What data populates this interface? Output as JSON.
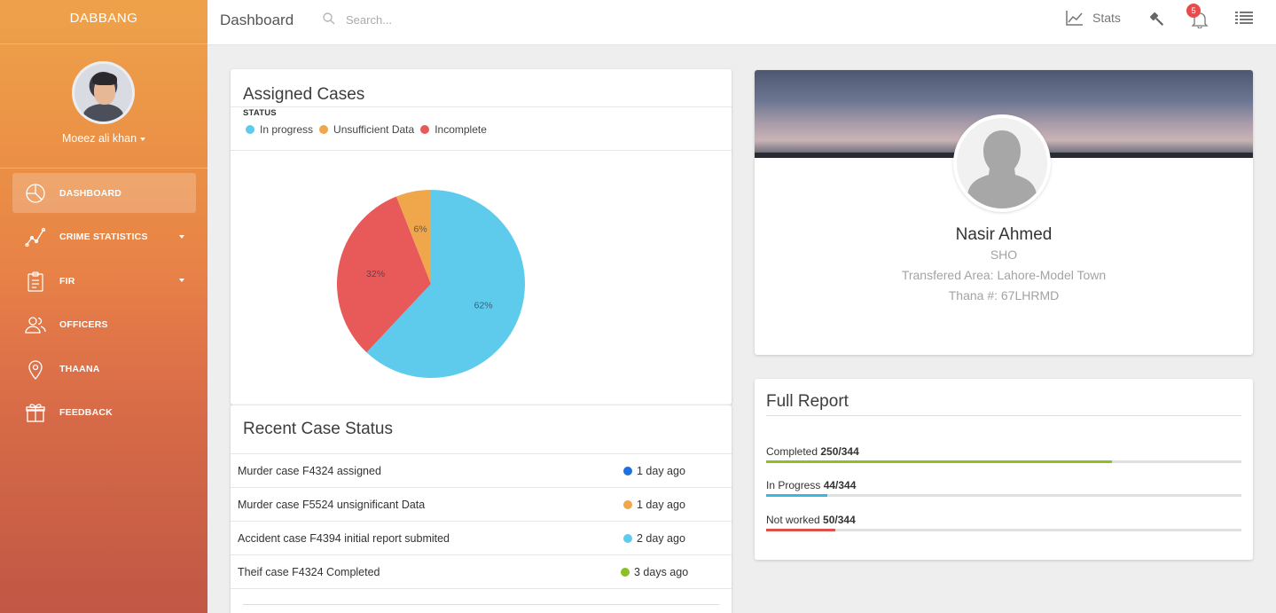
{
  "app": {
    "brand": "DABBANG",
    "user_name": "Moeez ali khan"
  },
  "sidebar": {
    "items": [
      {
        "label": "DASHBOARD",
        "icon": "dashboard-pie-icon",
        "active": true
      },
      {
        "label": "CRIME STATISTICS",
        "icon": "chart-line-icon",
        "has_submenu": true
      },
      {
        "label": "FIR",
        "icon": "clipboard-icon",
        "has_submenu": true
      },
      {
        "label": "OFFICERS",
        "icon": "users-icon"
      },
      {
        "label": "THAANA",
        "icon": "map-pin-icon"
      },
      {
        "label": "FEEDBACK",
        "icon": "gift-icon"
      }
    ]
  },
  "topbar": {
    "title": "Dashboard",
    "search_placeholder": "Search...",
    "stats_label": "Stats",
    "notification_count": "5"
  },
  "assigned_cases": {
    "title": "Assigned Cases",
    "status_label": "STATUS",
    "legend": [
      {
        "label": "In progress",
        "color": "#5ecbed"
      },
      {
        "label": "Unsufficient Data",
        "color": "#f0a64a"
      },
      {
        "label": "Incomplete",
        "color": "#e85a5a"
      }
    ]
  },
  "chart_data": {
    "type": "pie",
    "categories": [
      "In progress",
      "Unsufficient Data",
      "Incomplete"
    ],
    "values": [
      62,
      6,
      32
    ],
    "labels": [
      "62%",
      "6%",
      "32%"
    ],
    "colors": [
      "#5ecbed",
      "#f0a64a",
      "#e85a5a"
    ]
  },
  "recent_status": {
    "title": "Recent Case Status",
    "rows": [
      {
        "text": "Murder case F4324 assigned",
        "time": "1 day ago",
        "color": "#1e6fe0"
      },
      {
        "text": "Murder case F5524 unsignificant Data",
        "time": "1 day ago",
        "color": "#f0a64a"
      },
      {
        "text": "Accident case F4394 initial report submited",
        "time": "2 day ago",
        "color": "#5ecbed"
      },
      {
        "text": "Theif case F4324 Completed",
        "time": "3 days ago",
        "color": "#8fbf26"
      }
    ]
  },
  "profile": {
    "name": "Nasir Ahmed",
    "role": "SHO",
    "area": "Transfered Area: Lahore-Model Town",
    "thana": "Thana #: 67LHRMD"
  },
  "full_report": {
    "title": "Full Report",
    "items": [
      {
        "label": "Completed",
        "value": "250/344",
        "fraction": 0.727,
        "color": "#8fbf26"
      },
      {
        "label": "In Progress",
        "value": "44/344",
        "fraction": 0.128,
        "color": "#39b8dc"
      },
      {
        "label": "Not worked",
        "value": "50/344",
        "fraction": 0.145,
        "color": "#e0504b"
      }
    ]
  }
}
